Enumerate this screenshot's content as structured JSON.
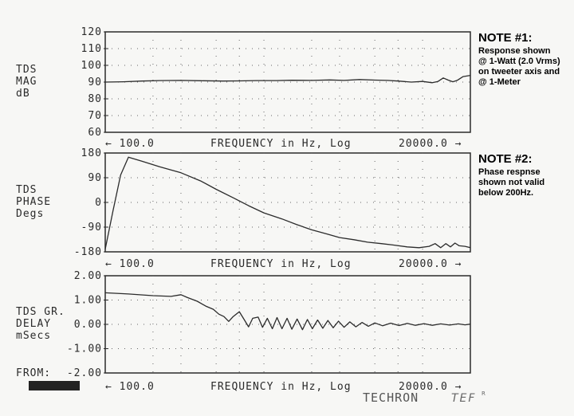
{
  "chart_data": [
    {
      "type": "line",
      "ylabel_lines": [
        "TDS",
        "MAG",
        "dB"
      ],
      "xlabel": "FREQUENCY in Hz, Log",
      "x_left_label": "← 100.0",
      "x_right_label": "20000.0 →",
      "xlim": [
        100,
        20000
      ],
      "x_scale": "log",
      "ylim": [
        60,
        120
      ],
      "y_tick_values": [
        120,
        110,
        100,
        90,
        80,
        70,
        60
      ],
      "y_tick_labels": [
        "120",
        "110",
        "100",
        "90",
        "80",
        "70",
        "60"
      ],
      "grid": "dotted",
      "series": [
        {
          "points": [
            [
              100,
              90.0
            ],
            [
              130,
              90.2
            ],
            [
              170,
              90.6
            ],
            [
              220,
              90.9
            ],
            [
              300,
              91.0
            ],
            [
              400,
              90.8
            ],
            [
              550,
              90.6
            ],
            [
              700,
              90.7
            ],
            [
              900,
              90.9
            ],
            [
              1200,
              90.9
            ],
            [
              1500,
              91.1
            ],
            [
              2000,
              91.0
            ],
            [
              2600,
              91.3
            ],
            [
              3200,
              91.0
            ],
            [
              4000,
              91.5
            ],
            [
              5000,
              91.2
            ],
            [
              6000,
              91.0
            ],
            [
              7000,
              90.6
            ],
            [
              8500,
              90.0
            ],
            [
              10000,
              90.4
            ],
            [
              11500,
              89.6
            ],
            [
              12500,
              90.4
            ],
            [
              13500,
              92.5
            ],
            [
              14500,
              91.2
            ],
            [
              15500,
              90.2
            ],
            [
              16500,
              91.0
            ],
            [
              18000,
              93.3
            ],
            [
              20000,
              94.0
            ]
          ]
        }
      ]
    },
    {
      "type": "line",
      "ylabel_lines": [
        "TDS",
        "PHASE",
        "Degs"
      ],
      "xlabel": "FREQUENCY in Hz, Log",
      "x_left_label": "← 100.0",
      "x_right_label": "20000.0 →",
      "xlim": [
        100,
        20000
      ],
      "x_scale": "log",
      "ylim": [
        -180,
        180
      ],
      "y_tick_values": [
        180,
        90,
        0,
        -90,
        -180
      ],
      "y_tick_labels": [
        "180",
        "90",
        "0",
        "-90",
        "-180"
      ],
      "grid": "dotted",
      "series": [
        {
          "points": [
            [
              100,
              -170
            ],
            [
              112,
              -30
            ],
            [
              125,
              100
            ],
            [
              140,
              165
            ],
            [
              170,
              150
            ],
            [
              220,
              130
            ],
            [
              300,
              108
            ],
            [
              400,
              78
            ],
            [
              500,
              48
            ],
            [
              650,
              15
            ],
            [
              800,
              -12
            ],
            [
              1000,
              -38
            ],
            [
              1300,
              -60
            ],
            [
              1600,
              -80
            ],
            [
              2000,
              -100
            ],
            [
              2500,
              -115
            ],
            [
              3000,
              -128
            ],
            [
              3700,
              -136
            ],
            [
              4500,
              -145
            ],
            [
              5500,
              -150
            ],
            [
              6500,
              -155
            ],
            [
              8000,
              -162
            ],
            [
              9500,
              -165
            ],
            [
              11000,
              -160
            ],
            [
              12000,
              -150
            ],
            [
              13000,
              -165
            ],
            [
              14000,
              -150
            ],
            [
              15000,
              -162
            ],
            [
              16000,
              -148
            ],
            [
              17000,
              -158
            ],
            [
              18500,
              -160
            ],
            [
              20000,
              -165
            ]
          ]
        }
      ]
    },
    {
      "type": "line",
      "ylabel_lines": [
        "TDS GR.",
        "DELAY",
        "mSecs"
      ],
      "xlabel": "FREQUENCY in Hz, Log",
      "x_left_label": "← 100.0",
      "x_right_label": "20000.0 →",
      "xlim": [
        100,
        20000
      ],
      "x_scale": "log",
      "ylim": [
        -2,
        2
      ],
      "y_tick_values": [
        2,
        1,
        0,
        -1,
        -2
      ],
      "y_tick_labels": [
        "2.00",
        "1.00",
        "0.00",
        "-1.00",
        "-2.00"
      ],
      "grid": "dotted",
      "series": [
        {
          "points": [
            [
              100,
              1.3
            ],
            [
              140,
              1.25
            ],
            [
              200,
              1.18
            ],
            [
              260,
              1.15
            ],
            [
              300,
              1.22
            ],
            [
              330,
              1.1
            ],
            [
              380,
              0.95
            ],
            [
              430,
              0.75
            ],
            [
              480,
              0.62
            ],
            [
              520,
              0.42
            ],
            [
              560,
              0.32
            ],
            [
              600,
              0.12
            ],
            [
              640,
              0.32
            ],
            [
              700,
              0.52
            ],
            [
              750,
              0.2
            ],
            [
              800,
              -0.1
            ],
            [
              850,
              0.25
            ],
            [
              920,
              0.3
            ],
            [
              980,
              -0.12
            ],
            [
              1050,
              0.25
            ],
            [
              1130,
              -0.18
            ],
            [
              1210,
              0.28
            ],
            [
              1300,
              -0.18
            ],
            [
              1400,
              0.25
            ],
            [
              1500,
              -0.2
            ],
            [
              1620,
              0.22
            ],
            [
              1750,
              -0.22
            ],
            [
              1880,
              0.2
            ],
            [
              2020,
              -0.18
            ],
            [
              2180,
              0.18
            ],
            [
              2350,
              -0.16
            ],
            [
              2530,
              0.16
            ],
            [
              2730,
              -0.14
            ],
            [
              2950,
              0.13
            ],
            [
              3200,
              -0.12
            ],
            [
              3480,
              0.1
            ],
            [
              3800,
              -0.1
            ],
            [
              4150,
              0.08
            ],
            [
              4550,
              -0.08
            ],
            [
              5000,
              0.06
            ],
            [
              5600,
              -0.06
            ],
            [
              6300,
              0.05
            ],
            [
              7100,
              -0.05
            ],
            [
              8000,
              0.04
            ],
            [
              9000,
              -0.04
            ],
            [
              10200,
              0.03
            ],
            [
              11500,
              -0.04
            ],
            [
              13000,
              0.02
            ],
            [
              14800,
              -0.03
            ],
            [
              16800,
              0.02
            ],
            [
              18500,
              -0.02
            ],
            [
              20000,
              0.01
            ]
          ]
        }
      ]
    }
  ],
  "notes": {
    "note1_title": "NOTE #1:",
    "note1_lines": [
      "Response shown",
      "@ 1-Watt (2.0 Vrms)",
      "on tweeter axis and",
      "@ 1-Meter"
    ],
    "note2_title": "NOTE #2:",
    "note2_lines": [
      "Phase respnse",
      "shown not valid",
      "below 200Hz."
    ]
  },
  "footer": {
    "from_label": "FROM:",
    "brand_text": "TECHRON",
    "brand_tef": "TEF"
  },
  "colors": {
    "trace": "#2b2b2b",
    "frame": "#2b2b2b",
    "grid": "#666666"
  }
}
